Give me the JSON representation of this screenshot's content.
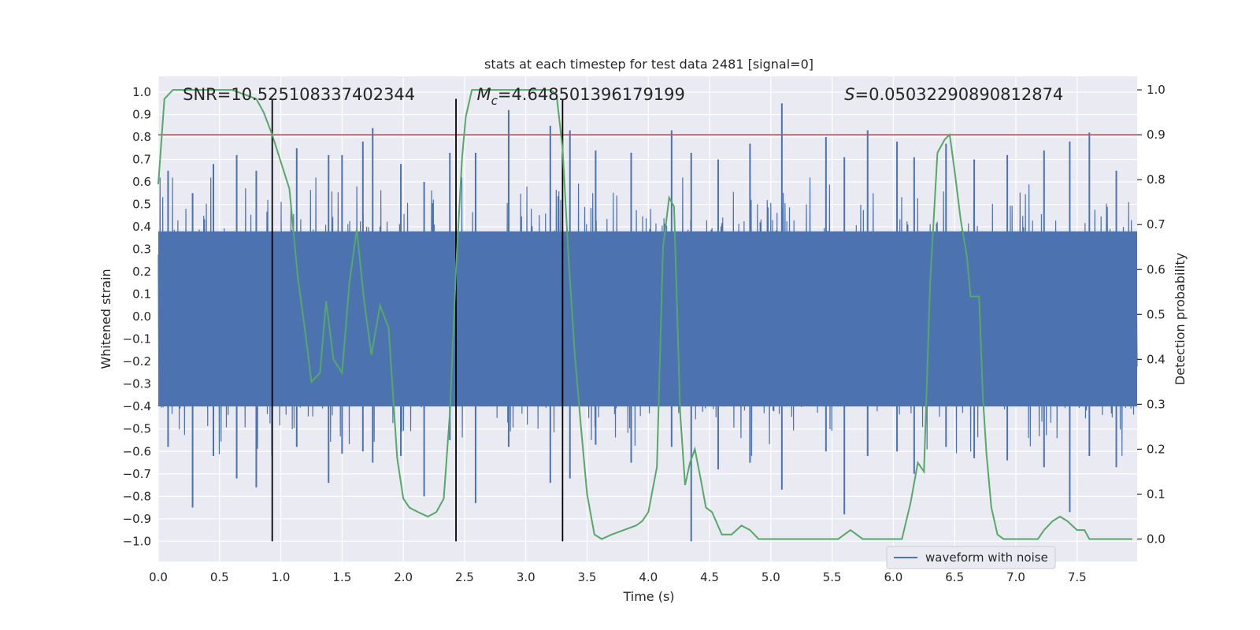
{
  "chart_data": {
    "type": "line",
    "title": "stats at each timestep for test data 2481 [signal=0]",
    "xlabel": "Time (s)",
    "ylabel_left": "Whitened strain",
    "ylabel_right": "Detection probability",
    "xlim": [
      0.0,
      7.99
    ],
    "ylim_left": [
      -1.09,
      1.07
    ],
    "ylim_right": [
      -0.05,
      1.03
    ],
    "x_ticks": [
      0.0,
      0.5,
      1.0,
      1.5,
      2.0,
      2.5,
      3.0,
      3.5,
      4.0,
      4.5,
      5.0,
      5.5,
      6.0,
      6.5,
      7.0,
      7.5
    ],
    "x_tick_labels": [
      "0.0",
      "0.5",
      "1.0",
      "1.5",
      "2.0",
      "2.5",
      "3.0",
      "3.5",
      "4.0",
      "4.5",
      "5.0",
      "5.5",
      "6.0",
      "6.5",
      "7.0",
      "7.5"
    ],
    "left_ticks": [
      1.0,
      0.9,
      0.8,
      0.7,
      0.6,
      0.5,
      0.4,
      0.3,
      0.2,
      0.1,
      0.0,
      -0.1,
      -0.2,
      -0.3,
      -0.4,
      -0.5,
      -0.6,
      -0.7,
      -0.8,
      -0.9,
      -1.0
    ],
    "left_tick_labels": [
      "1.0",
      "0.9",
      "0.8",
      "0.7",
      "0.6",
      "0.5",
      "0.4",
      "0.3",
      "0.2",
      "0.1",
      "0.0",
      "−0.1",
      "−0.2",
      "−0.3",
      "−0.4",
      "−0.5",
      "−0.6",
      "−0.7",
      "−0.8",
      "−0.9",
      "−1.0"
    ],
    "right_ticks": [
      1.0,
      0.9,
      0.8,
      0.7,
      0.6,
      0.5,
      0.4,
      0.3,
      0.2,
      0.1,
      0.0
    ],
    "right_tick_labels": [
      "1.0",
      "0.9",
      "0.8",
      "0.7",
      "0.6",
      "0.5",
      "0.4",
      "0.3",
      "0.2",
      "0.1",
      "0.0"
    ],
    "annotations": [
      {
        "text": "SNR=10.525108337402344",
        "x": 0.2
      },
      {
        "text": "M_c=4.648501396179199",
        "x": 2.6
      },
      {
        "text": "S=0.05032290890812874",
        "x": 5.6
      }
    ],
    "annotation_y": 0.99,
    "threshold": {
      "value": 0.9,
      "axis": "right",
      "color": "#c44e52"
    },
    "vertical_lines": [
      {
        "x": 0.93,
        "ymin": -1.0,
        "ymax": 0.97
      },
      {
        "x": 2.43,
        "ymin": -1.0,
        "ymax": 0.97
      },
      {
        "x": 3.3,
        "ymin": -1.0,
        "ymax": 0.97
      }
    ],
    "series": [
      {
        "name": "waveform with noise",
        "axis": "left",
        "color": "#4c72b0",
        "envelope_peaks": [
          [
            0.08,
            0.65,
            -0.58
          ],
          [
            0.28,
            0.55,
            -0.85
          ],
          [
            0.45,
            0.68,
            -0.62
          ],
          [
            0.64,
            0.72,
            -0.72
          ],
          [
            0.8,
            0.65,
            -0.76
          ],
          [
            1.13,
            0.75,
            -0.58
          ],
          [
            1.39,
            0.72,
            -0.74
          ],
          [
            1.5,
            0.72,
            -0.61
          ],
          [
            1.67,
            0.78,
            -0.6
          ],
          [
            1.75,
            0.84,
            -0.65
          ],
          [
            1.98,
            0.68,
            -0.62
          ],
          [
            2.17,
            0.6,
            -0.8
          ],
          [
            2.38,
            0.73,
            -0.55
          ],
          [
            2.59,
            0.73,
            -0.83
          ],
          [
            2.86,
            0.92,
            -0.58
          ],
          [
            3.2,
            0.85,
            -0.74
          ],
          [
            3.36,
            0.83,
            -0.72
          ],
          [
            3.57,
            0.74,
            -0.57
          ],
          [
            3.86,
            0.73,
            -0.65
          ],
          [
            4.19,
            0.83,
            -0.58
          ],
          [
            4.35,
            0.73,
            -1.0
          ],
          [
            4.57,
            0.7,
            -0.68
          ],
          [
            4.83,
            0.77,
            -0.65
          ],
          [
            5.09,
            0.95,
            -0.77
          ],
          [
            5.45,
            0.8,
            -0.6
          ],
          [
            5.6,
            0.71,
            -0.88
          ],
          [
            5.79,
            0.83,
            -0.62
          ],
          [
            6.03,
            0.78,
            -0.6
          ],
          [
            6.17,
            0.71,
            -0.7
          ],
          [
            6.43,
            0.77,
            -0.58
          ],
          [
            6.66,
            0.7,
            -0.63
          ],
          [
            6.93,
            0.72,
            -0.64
          ],
          [
            7.23,
            0.74,
            -0.67
          ],
          [
            7.44,
            0.78,
            -0.87
          ],
          [
            7.6,
            0.82,
            -0.62
          ],
          [
            7.82,
            0.65,
            -0.67
          ]
        ],
        "typical_amplitude": 0.42
      },
      {
        "name": "detection probability",
        "axis": "right",
        "color": "#55a868",
        "x": [
          0.0,
          0.05,
          0.12,
          0.2,
          0.3,
          0.4,
          0.5,
          0.6,
          0.7,
          0.8,
          0.86,
          0.93,
          1.0,
          1.07,
          1.14,
          1.2,
          1.25,
          1.32,
          1.37,
          1.43,
          1.5,
          1.56,
          1.62,
          1.68,
          1.74,
          1.81,
          1.88,
          1.95,
          2.0,
          2.05,
          2.12,
          2.2,
          2.27,
          2.33,
          2.38,
          2.43,
          2.48,
          2.51,
          2.56,
          2.63,
          2.7,
          2.8,
          2.9,
          3.0,
          3.1,
          3.2,
          3.25,
          3.3,
          3.35,
          3.4,
          3.45,
          3.5,
          3.56,
          3.62,
          3.7,
          3.8,
          3.9,
          3.95,
          4.0,
          4.07,
          4.12,
          4.17,
          4.21,
          4.26,
          4.3,
          4.34,
          4.38,
          4.43,
          4.47,
          4.52,
          4.6,
          4.68,
          4.76,
          4.83,
          4.9,
          4.96,
          5.05,
          5.2,
          5.4,
          5.55,
          5.65,
          5.75,
          5.9,
          6.0,
          6.07,
          6.14,
          6.2,
          6.25,
          6.3,
          6.36,
          6.42,
          6.46,
          6.5,
          6.55,
          6.6,
          6.63,
          6.66,
          6.7,
          6.73,
          6.76,
          6.8,
          6.85,
          6.9,
          7.0,
          7.1,
          7.18,
          7.23,
          7.3,
          7.36,
          7.42,
          7.5,
          7.56,
          7.6,
          7.65,
          7.7,
          7.8,
          7.9,
          7.95
        ],
        "y": [
          0.79,
          0.98,
          1.0,
          1.0,
          1.0,
          1.0,
          1.0,
          1.0,
          0.99,
          0.98,
          0.95,
          0.9,
          0.84,
          0.78,
          0.58,
          0.46,
          0.35,
          0.37,
          0.53,
          0.4,
          0.37,
          0.57,
          0.69,
          0.53,
          0.41,
          0.52,
          0.47,
          0.18,
          0.09,
          0.07,
          0.06,
          0.05,
          0.06,
          0.09,
          0.28,
          0.6,
          0.85,
          0.94,
          1.0,
          1.0,
          1.0,
          1.0,
          1.0,
          1.0,
          1.0,
          1.0,
          0.99,
          0.87,
          0.62,
          0.41,
          0.25,
          0.1,
          0.01,
          0.0,
          0.01,
          0.02,
          0.03,
          0.04,
          0.06,
          0.16,
          0.65,
          0.76,
          0.74,
          0.28,
          0.12,
          0.17,
          0.2,
          0.13,
          0.07,
          0.06,
          0.01,
          0.01,
          0.03,
          0.02,
          0.0,
          0.0,
          0.0,
          0.0,
          0.0,
          0.0,
          0.02,
          0.0,
          0.0,
          0.0,
          0.0,
          0.08,
          0.17,
          0.15,
          0.57,
          0.86,
          0.89,
          0.9,
          0.82,
          0.71,
          0.63,
          0.54,
          0.54,
          0.54,
          0.32,
          0.19,
          0.07,
          0.01,
          0.0,
          0.0,
          0.0,
          0.0,
          0.02,
          0.04,
          0.05,
          0.04,
          0.02,
          0.02,
          0.0,
          0.0,
          0.0,
          0.0,
          0.0,
          0.0
        ]
      }
    ],
    "legend": {
      "entries": [
        "waveform with noise"
      ],
      "placement": "bottom-right"
    }
  },
  "colors": {
    "axes_bg": "#eaeaf2",
    "grid": "#ffffff",
    "vline": "#000000",
    "text": "#262626"
  }
}
